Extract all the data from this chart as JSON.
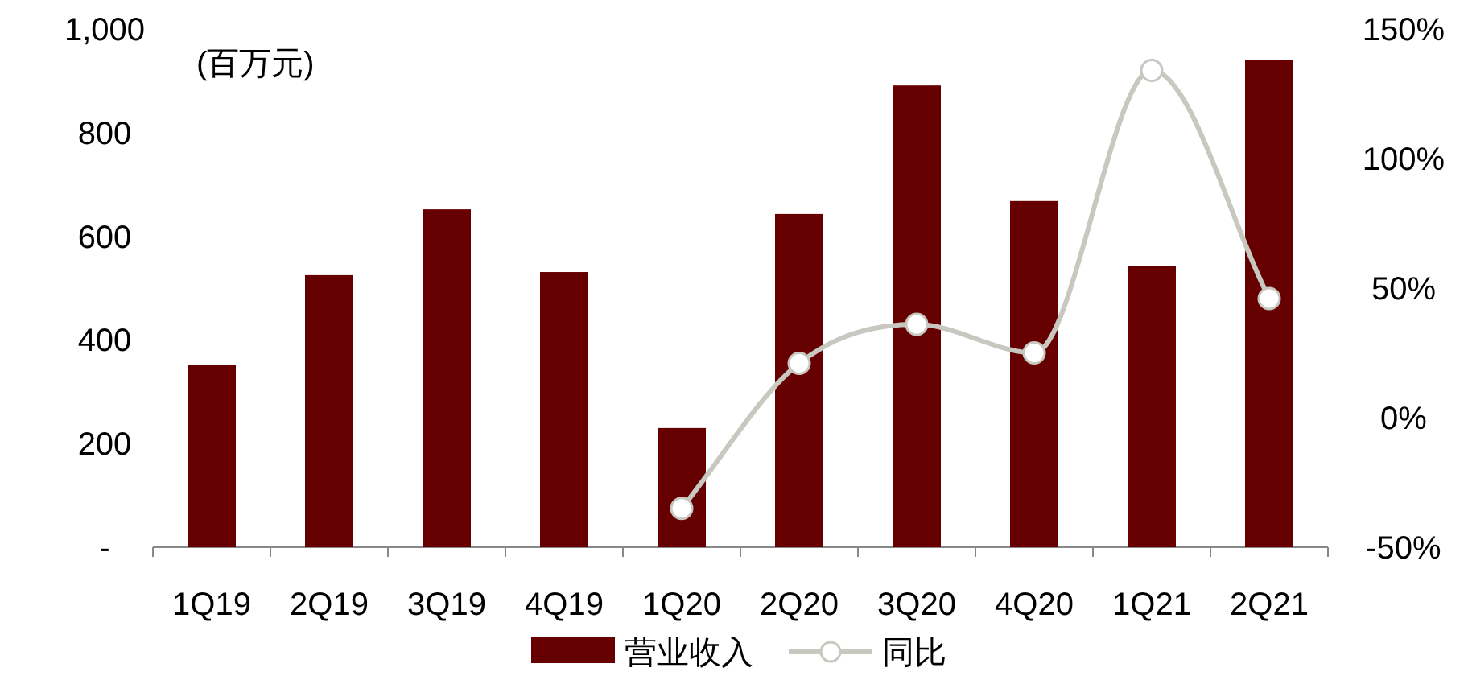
{
  "chart_data": {
    "type": "bar",
    "categories": [
      "1Q19",
      "2Q19",
      "3Q19",
      "4Q19",
      "1Q20",
      "2Q20",
      "3Q20",
      "4Q20",
      "1Q21",
      "2Q21"
    ],
    "ylim": [
      0,
      1000
    ],
    "yticks": [
      {
        "value": 0,
        "label": "-"
      },
      200,
      400,
      600,
      800,
      {
        "value": 1000,
        "label": "1,000"
      }
    ],
    "y2lim": [
      -50,
      150
    ],
    "y2ticks": [
      {
        "value": -50,
        "label": "-50%"
      },
      {
        "value": 0,
        "label": "0%"
      },
      {
        "value": 50,
        "label": "50%"
      },
      {
        "value": 100,
        "label": "100%"
      },
      {
        "value": 150,
        "label": "150%"
      }
    ],
    "annotations": [
      "(百万元)"
    ],
    "legend": "bottom",
    "grid": false,
    "marker": "circle",
    "series": [
      {
        "name": "营业收入",
        "color": "#660000",
        "values": [
          351,
          525,
          652,
          531,
          230,
          643,
          891,
          668,
          543,
          941
        ]
      },
      {
        "name": "同比",
        "type": "line",
        "axis": "y2",
        "color": "#c8c8c0",
        "values": [
          null,
          null,
          null,
          null,
          -35,
          21,
          36,
          25,
          134,
          46
        ]
      }
    ]
  }
}
